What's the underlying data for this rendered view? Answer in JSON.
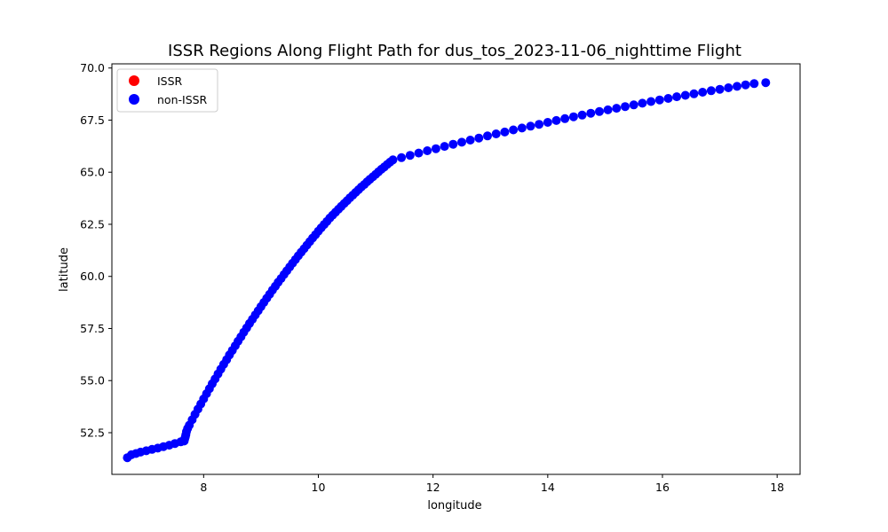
{
  "chart_data": {
    "type": "scatter",
    "title": "ISSR Regions Along Flight Path for dus_tos_2023-11-06_nighttime Flight",
    "xlabel": "longitude",
    "ylabel": "latitude",
    "xlim": [
      6.4,
      18.4
    ],
    "ylim": [
      50.5,
      70.2
    ],
    "xticks": [
      8,
      10,
      12,
      14,
      16,
      18
    ],
    "yticks": [
      52.5,
      55.0,
      57.5,
      60.0,
      62.5,
      65.0,
      67.5,
      70.0
    ],
    "xtick_labels": [
      "8",
      "10",
      "12",
      "14",
      "16",
      "18"
    ],
    "ytick_labels": [
      "52.5",
      "55.0",
      "57.5",
      "60.0",
      "62.5",
      "65.0",
      "67.5",
      "70.0"
    ],
    "grid": false,
    "legend_position": "top-left",
    "series": [
      {
        "name": "ISSR",
        "color": "#ff0000",
        "x": [],
        "y": []
      },
      {
        "name": "non-ISSR",
        "color": "#0000ff",
        "x": [
          6.67,
          6.74,
          6.82,
          6.9,
          7.0,
          7.1,
          7.2,
          7.3,
          7.4,
          7.5,
          7.6,
          7.66,
          7.67,
          7.68,
          7.69,
          7.7,
          7.72,
          7.75,
          7.8,
          7.85,
          7.9,
          7.95,
          8.0,
          8.05,
          8.1,
          8.15,
          8.2,
          8.25,
          8.3,
          8.35,
          8.4,
          8.45,
          8.5,
          8.55,
          8.6,
          8.65,
          8.7,
          8.75,
          8.8,
          8.85,
          8.9,
          8.95,
          9.0,
          9.05,
          9.1,
          9.15,
          9.2,
          9.25,
          9.3,
          9.35,
          9.4,
          9.45,
          9.5,
          9.55,
          9.6,
          9.65,
          9.7,
          9.75,
          9.8,
          9.85,
          9.9,
          9.95,
          10.0,
          10.05,
          10.1,
          10.15,
          10.2,
          10.25,
          10.3,
          10.35,
          10.4,
          10.45,
          10.5,
          10.55,
          10.6,
          10.65,
          10.7,
          10.75,
          10.8,
          10.85,
          10.9,
          10.95,
          11.0,
          11.05,
          11.1,
          11.15,
          11.2,
          11.25,
          11.3,
          11.45,
          11.6,
          11.75,
          11.9,
          12.05,
          12.2,
          12.35,
          12.5,
          12.65,
          12.8,
          12.95,
          13.1,
          13.25,
          13.4,
          13.55,
          13.7,
          13.85,
          14.0,
          14.15,
          14.3,
          14.45,
          14.6,
          14.75,
          14.9,
          15.05,
          15.2,
          15.35,
          15.5,
          15.65,
          15.8,
          15.95,
          16.1,
          16.25,
          16.4,
          16.55,
          16.7,
          16.85,
          17.0,
          17.15,
          17.3,
          17.45,
          17.6,
          17.8
        ],
        "y": [
          51.3,
          51.44,
          51.5,
          51.57,
          51.63,
          51.7,
          51.76,
          51.83,
          51.9,
          51.98,
          52.06,
          52.1,
          52.2,
          52.3,
          52.4,
          52.55,
          52.7,
          52.86,
          53.12,
          53.38,
          53.63,
          53.88,
          54.12,
          54.37,
          54.61,
          54.85,
          55.08,
          55.32,
          55.55,
          55.78,
          56.0,
          56.23,
          56.45,
          56.67,
          56.89,
          57.1,
          57.32,
          57.53,
          57.74,
          57.94,
          58.15,
          58.35,
          58.55,
          58.75,
          58.95,
          59.14,
          59.34,
          59.53,
          59.72,
          59.9,
          60.09,
          60.27,
          60.45,
          60.63,
          60.81,
          60.99,
          61.16,
          61.33,
          61.5,
          61.67,
          61.84,
          62.0,
          62.17,
          62.33,
          62.49,
          62.64,
          62.8,
          62.94,
          63.08,
          63.22,
          63.36,
          63.5,
          63.63,
          63.77,
          63.9,
          64.03,
          64.16,
          64.29,
          64.41,
          64.54,
          64.66,
          64.78,
          64.9,
          65.02,
          65.14,
          65.25,
          65.37,
          65.48,
          65.59,
          65.7,
          65.81,
          65.92,
          66.03,
          66.13,
          66.24,
          66.34,
          66.44,
          66.54,
          66.64,
          66.74,
          66.84,
          66.93,
          67.03,
          67.12,
          67.21,
          67.3,
          67.39,
          67.48,
          67.57,
          67.66,
          67.74,
          67.83,
          67.91,
          67.99,
          68.07,
          68.15,
          68.23,
          68.31,
          68.39,
          68.47,
          68.54,
          68.62,
          68.69,
          68.76,
          68.84,
          68.91,
          68.98,
          69.05,
          69.12,
          69.19,
          69.25,
          69.3
        ]
      }
    ]
  }
}
